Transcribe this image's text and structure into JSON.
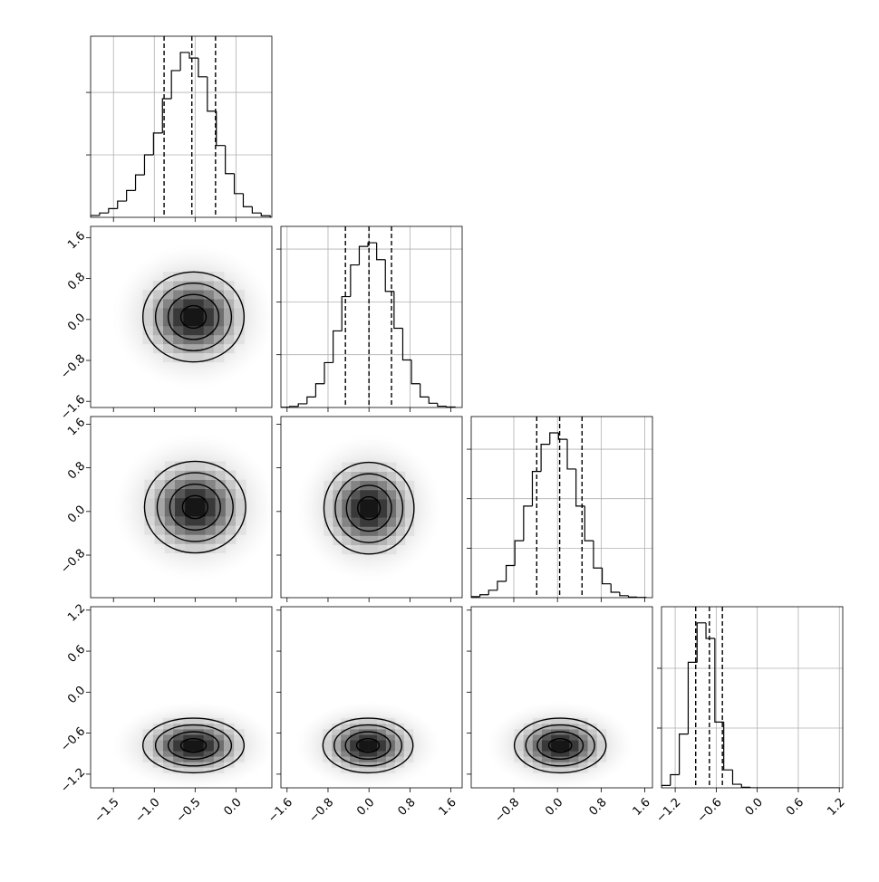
{
  "chart_data": {
    "type": "corner",
    "color": "#000000",
    "grid": true,
    "params": [
      {
        "lim": [
          -1.78,
          0.44
        ],
        "ticks": [
          {
            "value": -1.5,
            "label": "−1.5"
          },
          {
            "value": -1.0,
            "label": "−1.0"
          },
          {
            "value": -0.5,
            "label": "−0.5"
          },
          {
            "value": 0,
            "label": "0.0"
          }
        ]
      },
      {
        "lim": [
          -1.72,
          1.82
        ],
        "ticks": [
          {
            "value": -1.6,
            "label": "−1.6"
          },
          {
            "value": -0.8,
            "label": "−0.8"
          },
          {
            "value": 0,
            "label": "0.0"
          },
          0.8,
          1.6
        ]
      },
      {
        "lim": [
          -1.58,
          1.74
        ],
        "ticks": [
          {
            "value": -0.8,
            "label": "−0.8"
          },
          {
            "value": 0,
            "label": "0.0"
          },
          0.8,
          1.6
        ]
      },
      {
        "lim": [
          -1.4,
          1.25
        ],
        "ticks": [
          {
            "value": -1.2,
            "label": "−1.2"
          },
          {
            "value": -0.6,
            "label": "−0.6"
          },
          {
            "value": 0,
            "label": "0.0"
          },
          0.6,
          1.2
        ]
      }
    ],
    "histograms": [
      {
        "bins": [
          -1.78,
          -1.67,
          -1.56,
          -1.45,
          -1.34,
          -1.23,
          -1.12,
          -1.01,
          -0.9,
          -0.79,
          -0.68,
          -0.57,
          -0.46,
          -0.35,
          -0.24,
          -0.13,
          -0.02,
          0.09,
          0.2,
          0.31,
          0.42
        ],
        "values": [
          30,
          70,
          140,
          260,
          430,
          680,
          1000,
          1350,
          1900,
          2350,
          2640,
          2550,
          2250,
          1700,
          1150,
          700,
          380,
          170,
          70,
          25
        ],
        "ylim": [
          0,
          2900
        ],
        "yticks": [
          1000,
          2000
        ],
        "quantiles": [
          -0.88,
          -0.54,
          -0.25
        ]
      },
      {
        "bins": [
          -1.72,
          -1.55,
          -1.38,
          -1.21,
          -1.04,
          -0.87,
          -0.7,
          -0.53,
          -0.36,
          -0.19,
          -0.02,
          0.15,
          0.32,
          0.49,
          0.66,
          0.83,
          1.0,
          1.17,
          1.34,
          1.51,
          1.68
        ],
        "values": [
          5,
          20,
          70,
          200,
          450,
          850,
          1450,
          2100,
          2700,
          3050,
          3120,
          2800,
          2200,
          1500,
          900,
          450,
          200,
          80,
          25,
          8
        ],
        "ylim": [
          0,
          3430
        ],
        "yticks": [
          1000,
          2000,
          3000
        ],
        "quantiles": [
          -0.46,
          0.0,
          0.44
        ]
      },
      {
        "bins": [
          -1.58,
          -1.42,
          -1.26,
          -1.1,
          -0.94,
          -0.78,
          -0.62,
          -0.46,
          -0.3,
          -0.14,
          0.02,
          0.18,
          0.34,
          0.5,
          0.66,
          0.82,
          0.98,
          1.14,
          1.3,
          1.46,
          1.62
        ],
        "values": [
          20,
          60,
          150,
          330,
          650,
          1150,
          1850,
          2550,
          3100,
          3330,
          3200,
          2600,
          1850,
          1150,
          600,
          280,
          110,
          40,
          12,
          4
        ],
        "ylim": [
          0,
          3660
        ],
        "yticks": [
          1000,
          2000,
          3000
        ],
        "quantiles": [
          -0.38,
          0.04,
          0.45
        ]
      },
      {
        "bins": [
          -1.4,
          -1.27,
          -1.14,
          -1.01,
          -0.88,
          -0.75,
          -0.62,
          -0.49,
          -0.36,
          -0.23,
          -0.1,
          0.03,
          0.16,
          0.29,
          0.42,
          0.55,
          0.68,
          0.81,
          0.94,
          1.07,
          1.2
        ],
        "values": [
          40,
          220,
          900,
          2100,
          2760,
          2500,
          1100,
          300,
          60,
          10,
          0,
          0,
          0,
          0,
          0,
          0,
          0,
          0,
          0,
          0
        ],
        "ylim": [
          0,
          3030
        ],
        "yticks": [
          1000,
          2000
        ],
        "quantiles": [
          -0.9,
          -0.7,
          -0.51
        ]
      }
    ],
    "panels": [
      [
        {
          "center": [
            -0.52,
            0.05
          ],
          "sigma": [
            0.31,
            0.44
          ]
        }
      ],
      [
        {
          "center": [
            -0.5,
            0.08
          ],
          "sigma": [
            0.31,
            0.42
          ]
        },
        {
          "center": [
            0.0,
            0.06
          ],
          "sigma": [
            0.44,
            0.42
          ]
        }
      ],
      [
        {
          "center": [
            -0.52,
            -0.78
          ],
          "sigma": [
            0.31,
            0.2
          ]
        },
        {
          "center": [
            -0.02,
            -0.78
          ],
          "sigma": [
            0.44,
            0.2
          ]
        },
        {
          "center": [
            0.05,
            -0.78
          ],
          "sigma": [
            0.42,
            0.2
          ]
        }
      ]
    ]
  }
}
